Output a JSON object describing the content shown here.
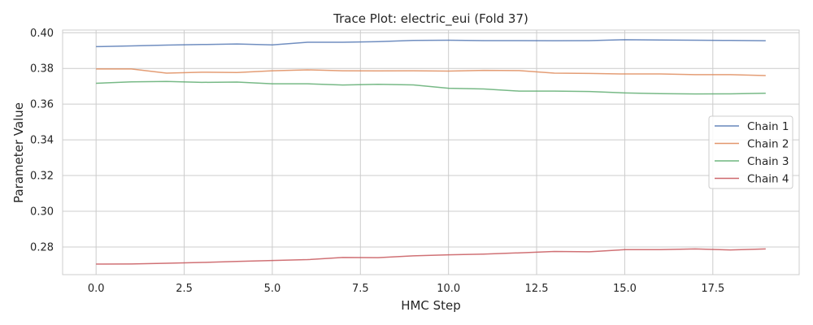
{
  "chart_data": {
    "type": "line",
    "title": "Trace Plot: electric_eui (Fold 37)",
    "xlabel": "HMC Step",
    "ylabel": "Parameter Value",
    "xlim": [
      -0.95,
      19.95
    ],
    "ylim": [
      0.2645,
      0.4015
    ],
    "xticks": [
      0.0,
      2.5,
      5.0,
      7.5,
      10.0,
      12.5,
      15.0,
      17.5
    ],
    "xtick_labels": [
      "0.0",
      "2.5",
      "5.0",
      "7.5",
      "10.0",
      "12.5",
      "15.0",
      "17.5"
    ],
    "yticks": [
      0.28,
      0.3,
      0.32,
      0.34,
      0.36,
      0.38,
      0.4
    ],
    "ytick_labels": [
      "0.28",
      "0.30",
      "0.32",
      "0.34",
      "0.36",
      "0.38",
      "0.40"
    ],
    "grid": true,
    "legend_position": "center-right",
    "x": [
      0,
      1,
      2,
      3,
      4,
      5,
      6,
      7,
      8,
      9,
      10,
      11,
      12,
      13,
      14,
      15,
      16,
      17,
      18,
      19
    ],
    "series": [
      {
        "name": "Chain 1",
        "color": "#4c72b0",
        "values": [
          0.3922,
          0.3926,
          0.3931,
          0.3934,
          0.3937,
          0.3932,
          0.3947,
          0.3947,
          0.395,
          0.3957,
          0.3958,
          0.3956,
          0.3956,
          0.3955,
          0.3956,
          0.3961,
          0.3959,
          0.3958,
          0.3957,
          0.3955
        ]
      },
      {
        "name": "Chain 2",
        "color": "#dd8452",
        "values": [
          0.3797,
          0.3797,
          0.3774,
          0.3779,
          0.3777,
          0.3787,
          0.3792,
          0.3787,
          0.3786,
          0.3787,
          0.3785,
          0.3789,
          0.3788,
          0.3774,
          0.3772,
          0.3769,
          0.3769,
          0.3765,
          0.3765,
          0.376
        ]
      },
      {
        "name": "Chain 3",
        "color": "#55a868",
        "values": [
          0.3717,
          0.3725,
          0.3727,
          0.3722,
          0.3724,
          0.3714,
          0.3714,
          0.3707,
          0.3711,
          0.3708,
          0.3689,
          0.3685,
          0.3673,
          0.3673,
          0.3671,
          0.3663,
          0.3659,
          0.3657,
          0.3658,
          0.3661
        ]
      },
      {
        "name": "Chain 4",
        "color": "#c44e52",
        "values": [
          0.2704,
          0.2705,
          0.2709,
          0.2713,
          0.2719,
          0.2724,
          0.2729,
          0.2741,
          0.274,
          0.275,
          0.2756,
          0.276,
          0.2767,
          0.2775,
          0.2773,
          0.2785,
          0.2785,
          0.2789,
          0.2783,
          0.2789
        ]
      }
    ]
  }
}
